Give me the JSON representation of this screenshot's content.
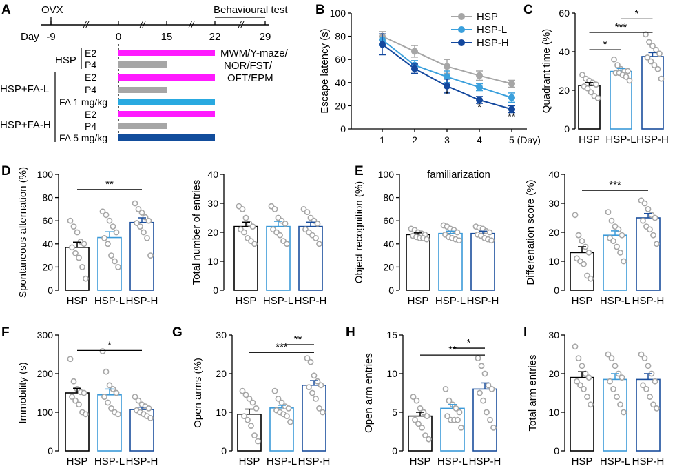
{
  "panel_letters": [
    "A",
    "B",
    "C",
    "D",
    "E",
    "F",
    "G",
    "H",
    "I"
  ],
  "colors": {
    "HSP": "#000000",
    "HSP-L": "#3b9ad9",
    "HSP-H": "#1a4e9c",
    "line_HSP": "#a6a6a6",
    "line_HSP-L": "#3ba0dc",
    "line_HSP-H": "#13489e",
    "dot": "#a6a6a6",
    "E2_bar": "#ff1aff",
    "P4_bar": "#a6a6a6",
    "FA_L_bar": "#29a9e0",
    "FA_H_bar": "#124d9c"
  },
  "timeline": {
    "ovx_label": "OVX",
    "day_label": "Day",
    "days": [
      "-9",
      "0",
      "15",
      "22",
      "29"
    ],
    "break_mark": "//",
    "behaviour_label": "Behavioural test",
    "tests_label": [
      "MWM/Y-maze/",
      "NOR/FST/",
      "OFT/EPM"
    ],
    "groups": [
      {
        "name": "HSP",
        "rows": [
          "E2",
          "P4"
        ]
      },
      {
        "name": "HSP+FA-L",
        "rows": [
          "E2",
          "P4",
          "FA 1 mg/kg"
        ]
      },
      {
        "name": "HSP+FA-H",
        "rows": [
          "E2",
          "P4",
          "FA 5 mg/kg"
        ]
      }
    ]
  },
  "chart_data": [
    {
      "panel": "B",
      "type": "line",
      "title": "",
      "xlabel": "",
      "ylabel": "Escape latency (s)",
      "x": [
        1,
        2,
        3,
        4,
        5
      ],
      "x_tick_labels": [
        "1",
        "2",
        "3",
        "4",
        "5 (Day)"
      ],
      "ylim": [
        0,
        100
      ],
      "yticks": [
        0,
        20,
        40,
        60,
        80,
        100
      ],
      "series": [
        {
          "name": "HSP",
          "values": [
            80,
            67,
            54,
            46,
            39
          ],
          "errors": [
            4,
            5,
            6,
            4,
            3
          ]
        },
        {
          "name": "HSP-L",
          "values": [
            77,
            55,
            45,
            36,
            27
          ],
          "errors": [
            5,
            4,
            5,
            3,
            4
          ]
        },
        {
          "name": "HSP-H",
          "values": [
            73,
            52,
            37,
            25,
            17
          ],
          "errors": [
            9,
            4,
            6,
            3,
            3
          ]
        }
      ],
      "legend": [
        "HSP",
        "HSP-L",
        "HSP-H"
      ],
      "legend_position": "top-right",
      "annotations": [
        {
          "x": 3,
          "y": 27,
          "text": "*"
        },
        {
          "x": 4,
          "y": 16,
          "text": "*"
        },
        {
          "x": 5,
          "y": 8,
          "text": "**"
        }
      ]
    },
    {
      "panel": "C",
      "type": "bar",
      "ylabel": "Quadrant time (%)",
      "categories": [
        "HSP",
        "HSP-L",
        "HSP-H"
      ],
      "values": [
        22.5,
        29.8,
        37.5
      ],
      "errors": [
        1.5,
        1.5,
        2
      ],
      "points": [
        [
          28,
          26,
          25,
          24,
          23,
          22,
          21,
          19,
          17,
          16
        ],
        [
          36,
          33,
          31,
          30,
          30,
          29,
          29,
          28,
          27,
          25
        ],
        [
          49,
          45,
          43,
          41,
          39,
          37,
          35,
          33,
          31,
          26
        ]
      ],
      "ylim": [
        0,
        60
      ],
      "yticks": [
        0,
        20,
        40,
        60
      ],
      "significance": [
        {
          "from": 0,
          "to": 1,
          "y": 41,
          "text": "*"
        },
        {
          "from": 0,
          "to": 2,
          "y": 50,
          "text": "***"
        },
        {
          "from": 1,
          "to": 2,
          "y": 57,
          "text": "*"
        }
      ]
    },
    {
      "panel": "D",
      "type": "bar",
      "ylabel": "Spontaneous alternation (%)",
      "categories": [
        "HSP",
        "HSP-L",
        "HSP-H"
      ],
      "values": [
        37,
        45.5,
        58.5
      ],
      "errors": [
        4.5,
        5,
        4
      ],
      "points": [
        [
          60,
          55,
          50,
          42,
          40,
          37,
          32,
          28,
          20,
          10
        ],
        [
          68,
          65,
          60,
          55,
          50,
          45,
          40,
          30,
          25,
          20
        ],
        [
          75,
          70,
          67,
          63,
          60,
          58,
          55,
          50,
          45,
          30
        ]
      ],
      "ylim": [
        0,
        100
      ],
      "yticks": [
        0,
        20,
        40,
        60,
        80,
        100
      ],
      "significance": [
        {
          "from": 0,
          "to": 2,
          "y": 87,
          "text": "**"
        }
      ]
    },
    {
      "panel": "D2",
      "type": "bar",
      "ylabel": "Total number of entries",
      "categories": [
        "HSP",
        "HSP-L",
        "HSP-H"
      ],
      "values": [
        22,
        22,
        22
      ],
      "errors": [
        1.5,
        1.8,
        1.5
      ],
      "points": [
        [
          29,
          28,
          25,
          23,
          22,
          21,
          20,
          18,
          17,
          16
        ],
        [
          29,
          28,
          25,
          24,
          23,
          21,
          20,
          19,
          17,
          16
        ],
        [
          28,
          27,
          25,
          24,
          23,
          21,
          20,
          19,
          18,
          16
        ]
      ],
      "ylim": [
        0,
        40
      ],
      "yticks": [
        0,
        10,
        20,
        30,
        40
      ],
      "significance": []
    },
    {
      "panel": "E",
      "type": "bar",
      "ylabel": "Object recognition  (%)",
      "title": "familiarization",
      "categories": [
        "HSP",
        "HSP-L",
        "HSP-H"
      ],
      "values": [
        48,
        49,
        49
      ],
      "errors": [
        1.5,
        2,
        2
      ],
      "points": [
        [
          53,
          52,
          50,
          49,
          48,
          47,
          46,
          45,
          45,
          44
        ],
        [
          56,
          55,
          53,
          52,
          50,
          48,
          46,
          45,
          44,
          43
        ],
        [
          55,
          54,
          53,
          51,
          50,
          48,
          47,
          45,
          44,
          43
        ]
      ],
      "ylim": [
        0,
        100
      ],
      "yticks": [
        0,
        20,
        40,
        60,
        80,
        100
      ],
      "significance": []
    },
    {
      "panel": "E2",
      "type": "bar",
      "ylabel": "Differenation score (%)",
      "categories": [
        "HSP",
        "HSP-L",
        "HSP-H"
      ],
      "values": [
        13,
        19,
        25
      ],
      "errors": [
        2,
        1.5,
        1.5
      ],
      "points": [
        [
          26,
          19,
          17,
          15,
          13,
          11,
          10,
          9,
          5,
          4
        ],
        [
          27,
          24,
          22,
          21,
          19,
          18,
          17,
          15,
          13,
          10
        ],
        [
          31,
          30,
          28,
          26,
          25,
          24,
          22,
          21,
          19,
          16
        ]
      ],
      "ylim": [
        0,
        40
      ],
      "yticks": [
        0,
        10,
        20,
        30,
        40
      ],
      "significance": [
        {
          "from": 0,
          "to": 2,
          "y": 34.5,
          "text": "***"
        }
      ]
    },
    {
      "panel": "F",
      "type": "bar",
      "ylabel": "Immobility (s)",
      "categories": [
        "HSP",
        "HSP-L",
        "HSP-H"
      ],
      "values": [
        150,
        145,
        107
      ],
      "errors": [
        12,
        15,
        6
      ],
      "points": [
        [
          238,
          180,
          160,
          152,
          150,
          140,
          130,
          120,
          100,
          95
        ],
        [
          258,
          205,
          170,
          160,
          150,
          140,
          125,
          110,
          100,
          95
        ],
        [
          140,
          130,
          120,
          115,
          110,
          105,
          100,
          95,
          90,
          85
        ]
      ],
      "ylim": [
        0,
        300
      ],
      "yticks": [
        0,
        100,
        200,
        300
      ],
      "significance": [
        {
          "from": 0,
          "to": 2,
          "y": 260,
          "text": "*"
        }
      ]
    },
    {
      "panel": "G",
      "type": "bar",
      "ylabel": "Open arms (%)",
      "categories": [
        "HSP",
        "HSP-L",
        "HSP-H"
      ],
      "values": [
        9.5,
        11.1,
        17
      ],
      "errors": [
        1.3,
        0.7,
        1.2
      ],
      "points": [
        [
          15.5,
          14.5,
          13.5,
          12.5,
          11,
          9,
          8,
          6.5,
          4,
          2.5
        ],
        [
          15.5,
          13.5,
          12.5,
          11.5,
          11,
          10.5,
          10,
          9.5,
          9,
          7.5
        ],
        [
          24,
          23,
          19.5,
          18,
          17,
          16.5,
          15,
          13.5,
          11,
          10
        ]
      ],
      "ylim": [
        0,
        30
      ],
      "yticks": [
        0,
        10,
        20,
        30
      ],
      "significance": [
        {
          "from": 1,
          "to": 2,
          "y": 27.5,
          "text": "**"
        },
        {
          "from": 0,
          "to": 2,
          "y": 25.5,
          "text": "***"
        }
      ]
    },
    {
      "panel": "H",
      "type": "bar",
      "ylabel": "Open arm entries",
      "categories": [
        "HSP",
        "HSP-L",
        "HSP-H"
      ],
      "values": [
        4.5,
        5.5,
        8
      ],
      "errors": [
        0.5,
        0.5,
        0.8
      ],
      "points": [
        [
          7,
          6.5,
          5.5,
          5,
          4.5,
          4,
          3.5,
          3,
          2,
          1.5
        ],
        [
          8,
          6.5,
          6,
          5.5,
          5,
          4.5,
          4,
          4,
          4,
          3
        ],
        [
          12,
          11,
          10,
          8.5,
          8,
          7.5,
          6.5,
          5,
          4,
          3
        ]
      ],
      "ylim": [
        0,
        15
      ],
      "yticks": [
        0,
        5,
        10,
        15
      ],
      "significance": [
        {
          "from": 1,
          "to": 2,
          "y": 13.3,
          "text": "*"
        },
        {
          "from": 0,
          "to": 2,
          "y": 12.4,
          "text": "**"
        }
      ]
    },
    {
      "panel": "I",
      "type": "bar",
      "ylabel": "Total arm entries",
      "categories": [
        "HSP",
        "HSP-L",
        "HSP-H"
      ],
      "values": [
        19,
        18.5,
        18.5
      ],
      "errors": [
        1.5,
        1.5,
        1.5
      ],
      "points": [
        [
          27,
          24,
          22,
          20,
          19,
          18,
          17,
          16,
          14,
          12
        ],
        [
          25,
          24,
          22,
          20,
          19,
          18,
          16,
          14,
          12,
          10
        ],
        [
          25,
          24,
          22,
          20,
          18,
          17,
          16,
          14,
          12,
          11
        ]
      ],
      "ylim": [
        0,
        30
      ],
      "yticks": [
        0,
        10,
        20,
        30
      ],
      "significance": []
    }
  ]
}
